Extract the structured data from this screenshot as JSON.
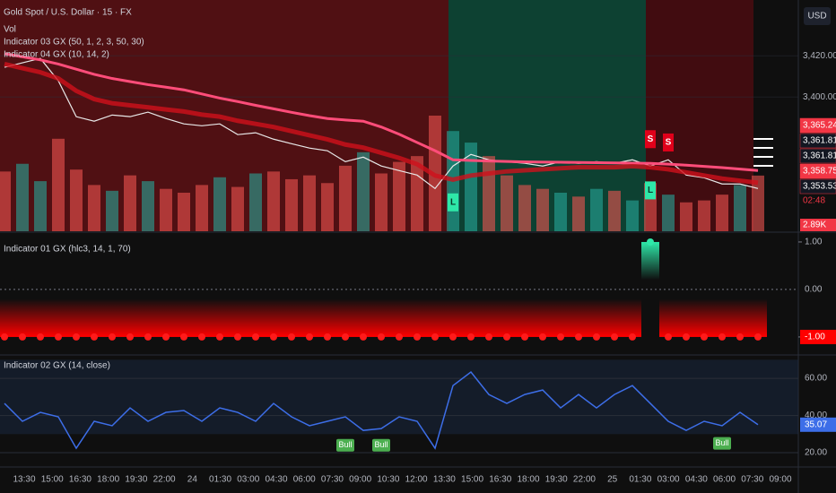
{
  "chart_data": [
    {
      "type": "price",
      "title": "Gold Spot / U.S. Dollar · 15 · FX",
      "currency": "USD",
      "legend_items": [
        "Vol",
        "Indicator 03 GX (50, 1, 2, 3, 50, 30)",
        "Indicator 04 GX (10, 14, 2)"
      ],
      "ylim": [
        3335,
        3447
      ],
      "yticks": [
        {
          "value": 3400,
          "label": "3,400.00"
        },
        {
          "value": 3420,
          "label": "3,420.00"
        }
      ],
      "zones": [
        {
          "from": 0,
          "to": 25,
          "color": "#5c1014"
        },
        {
          "from": 25,
          "to": 36,
          "color": "#0d4a38"
        },
        {
          "from": 36,
          "to": 42,
          "color": "#4a0c10"
        }
      ],
      "series": [
        {
          "name": "Close",
          "color": "#e8e8e8",
          "values": [
            3414.4,
            3416.6,
            3418.7,
            3407.9,
            3390.5,
            3388.3,
            3391.3,
            3390.5,
            3392.7,
            3389.6,
            3387.0,
            3386.1,
            3387.0,
            3381.8,
            3382.7,
            3379.6,
            3377.4,
            3375.3,
            3374.0,
            3368.7,
            3370.9,
            3366.6,
            3364.4,
            3362.2,
            3355.7,
            3366.6,
            3372.2,
            3369.6,
            3368.7,
            3367.9,
            3366.6,
            3368.7,
            3367.9,
            3368.7,
            3367.9,
            3369.6,
            3366.6,
            3369.6,
            3362.2,
            3360.9,
            3357.9,
            3357.9,
            3355.7
          ]
        },
        {
          "name": "MA",
          "color": "#ff4d7a",
          "values": [
            3421.0,
            3419.5,
            3418.0,
            3416.0,
            3413.5,
            3411.0,
            3409.0,
            3407.5,
            3406.0,
            3404.8,
            3403.5,
            3401.5,
            3399.5,
            3397.8,
            3396.0,
            3394.3,
            3392.6,
            3391.0,
            3389.6,
            3388.9,
            3388.3,
            3385.5,
            3382.0,
            3378.0,
            3374.0,
            3369.6,
            3369.3,
            3369.0,
            3368.8,
            3368.6,
            3368.5,
            3368.4,
            3368.3,
            3368.2,
            3368.1,
            3368.0,
            3367.9,
            3367.5,
            3367.0,
            3366.4,
            3365.8,
            3365.1,
            3364.4
          ]
        },
        {
          "name": "Band",
          "color": "#d0101c",
          "values": [
            3416.0,
            3414.0,
            3412.0,
            3409.0,
            3403.0,
            3399.0,
            3397.0,
            3396.0,
            3395.0,
            3394.0,
            3393.0,
            3391.5,
            3390.5,
            3388.5,
            3387.0,
            3385.5,
            3383.5,
            3381.5,
            3379.5,
            3377.0,
            3375.5,
            3373.0,
            3370.5,
            3367.5,
            3362.0,
            3360.0,
            3362.0,
            3363.0,
            3364.0,
            3364.5,
            3365.0,
            3365.5,
            3366.0,
            3366.0,
            3366.0,
            3366.5,
            3366.0,
            3365.0,
            3363.5,
            3362.0,
            3360.5,
            3359.5,
            3358.5
          ]
        }
      ],
      "volume": {
        "vlim": [
          0,
          12
        ],
        "values": [
          3.1,
          3.5,
          2.6,
          4.8,
          3.2,
          2.4,
          2.1,
          2.9,
          2.6,
          2.2,
          2.0,
          2.4,
          2.8,
          2.3,
          3.0,
          3.1,
          2.7,
          2.9,
          2.5,
          3.4,
          4.1,
          3.0,
          3.6,
          3.9,
          6.0,
          5.2,
          4.6,
          3.9,
          2.9,
          2.4,
          2.2,
          2.0,
          1.8,
          2.2,
          2.1,
          1.6,
          2.5,
          1.9,
          1.5,
          1.6,
          1.9,
          2.4,
          2.89
        ],
        "value_label": "2.89K"
      },
      "signals": [
        {
          "label": "S",
          "index": 36,
          "price": 3379.6
        },
        {
          "label": "S",
          "index": 37,
          "price": 3378.0
        },
        {
          "label": "L",
          "index": 25,
          "price": 3349.0
        },
        {
          "label": "L",
          "index": 36,
          "price": 3354.8
        }
      ],
      "last_values": [
        {
          "label": "3,365.24",
          "color": "#f23645"
        },
        {
          "label": "3,361.81",
          "color": "#131722"
        },
        {
          "label": "3,361.81",
          "color": "#131722"
        },
        {
          "label": "3,358.75",
          "color": "#f23645"
        },
        {
          "label": "3,353.53",
          "color": "#131722"
        }
      ],
      "countdown": "02:48"
    },
    {
      "type": "oscillator",
      "title": "Indicator 01 GX (hlc3, 14, 1, 70)",
      "ylim": [
        -1.36,
        1.15
      ],
      "yticks": [
        {
          "value": -1,
          "label": "-1.00"
        },
        {
          "value": 0,
          "label": "0.00"
        },
        {
          "value": 1,
          "label": "1.00"
        }
      ],
      "last_label": "-1.00",
      "values": [
        -1,
        -1,
        -1,
        -1,
        -1,
        -1,
        -1,
        -1,
        -1,
        -1,
        -1,
        -1,
        -1,
        -1,
        -1,
        -1,
        -1,
        -1,
        -1,
        -1,
        -1,
        -1,
        -1,
        -1,
        -1,
        -1,
        -1,
        -1,
        -1,
        -1,
        -1,
        -1,
        -1,
        -1,
        -1,
        -1,
        1,
        -1,
        -1,
        -1,
        -1,
        -1,
        -1
      ]
    },
    {
      "type": "rsi",
      "title": "Indicator 02 GX (14, close)",
      "color": "#3d6ee8",
      "ylim": [
        12.8,
        71.6
      ],
      "yticks": [
        {
          "value": 20,
          "label": "20.00"
        },
        {
          "value": 40,
          "label": "40.00"
        },
        {
          "value": 60,
          "label": "60.00"
        }
      ],
      "band": [
        30,
        70
      ],
      "last_label": "35.07",
      "values": [
        46.5,
        36.9,
        41.7,
        39.3,
        22.4,
        36.9,
        34.5,
        44.1,
        36.9,
        41.7,
        42.7,
        36.9,
        44.1,
        41.7,
        36.9,
        46.5,
        39.3,
        34.5,
        36.9,
        39.3,
        32.0,
        33.0,
        39.3,
        36.9,
        22.4,
        56.1,
        63.4,
        51.3,
        46.5,
        51.3,
        53.7,
        44.1,
        51.3,
        44.1,
        51.3,
        56.1,
        46.5,
        36.9,
        32.0,
        36.9,
        34.5,
        41.7,
        35.07
      ],
      "divergences": [
        {
          "label": "Bull",
          "index": 19,
          "value": 24
        },
        {
          "label": "Bull",
          "index": 21,
          "value": 24
        },
        {
          "label": "Bull",
          "index": 40,
          "value": 25
        }
      ],
      "time_labels": [
        "13:30",
        "15:00",
        "16:30",
        "18:00",
        "19:30",
        "22:00",
        "24",
        "01:30",
        "03:00",
        "04:30",
        "06:00",
        "07:30",
        "09:00",
        "10:30",
        "12:00",
        "13:30",
        "15:00",
        "16:30",
        "18:00",
        "19:30",
        "22:00",
        "25",
        "01:30",
        "03:00",
        "04:30",
        "06:00",
        "07:30",
        "09:00"
      ]
    }
  ]
}
